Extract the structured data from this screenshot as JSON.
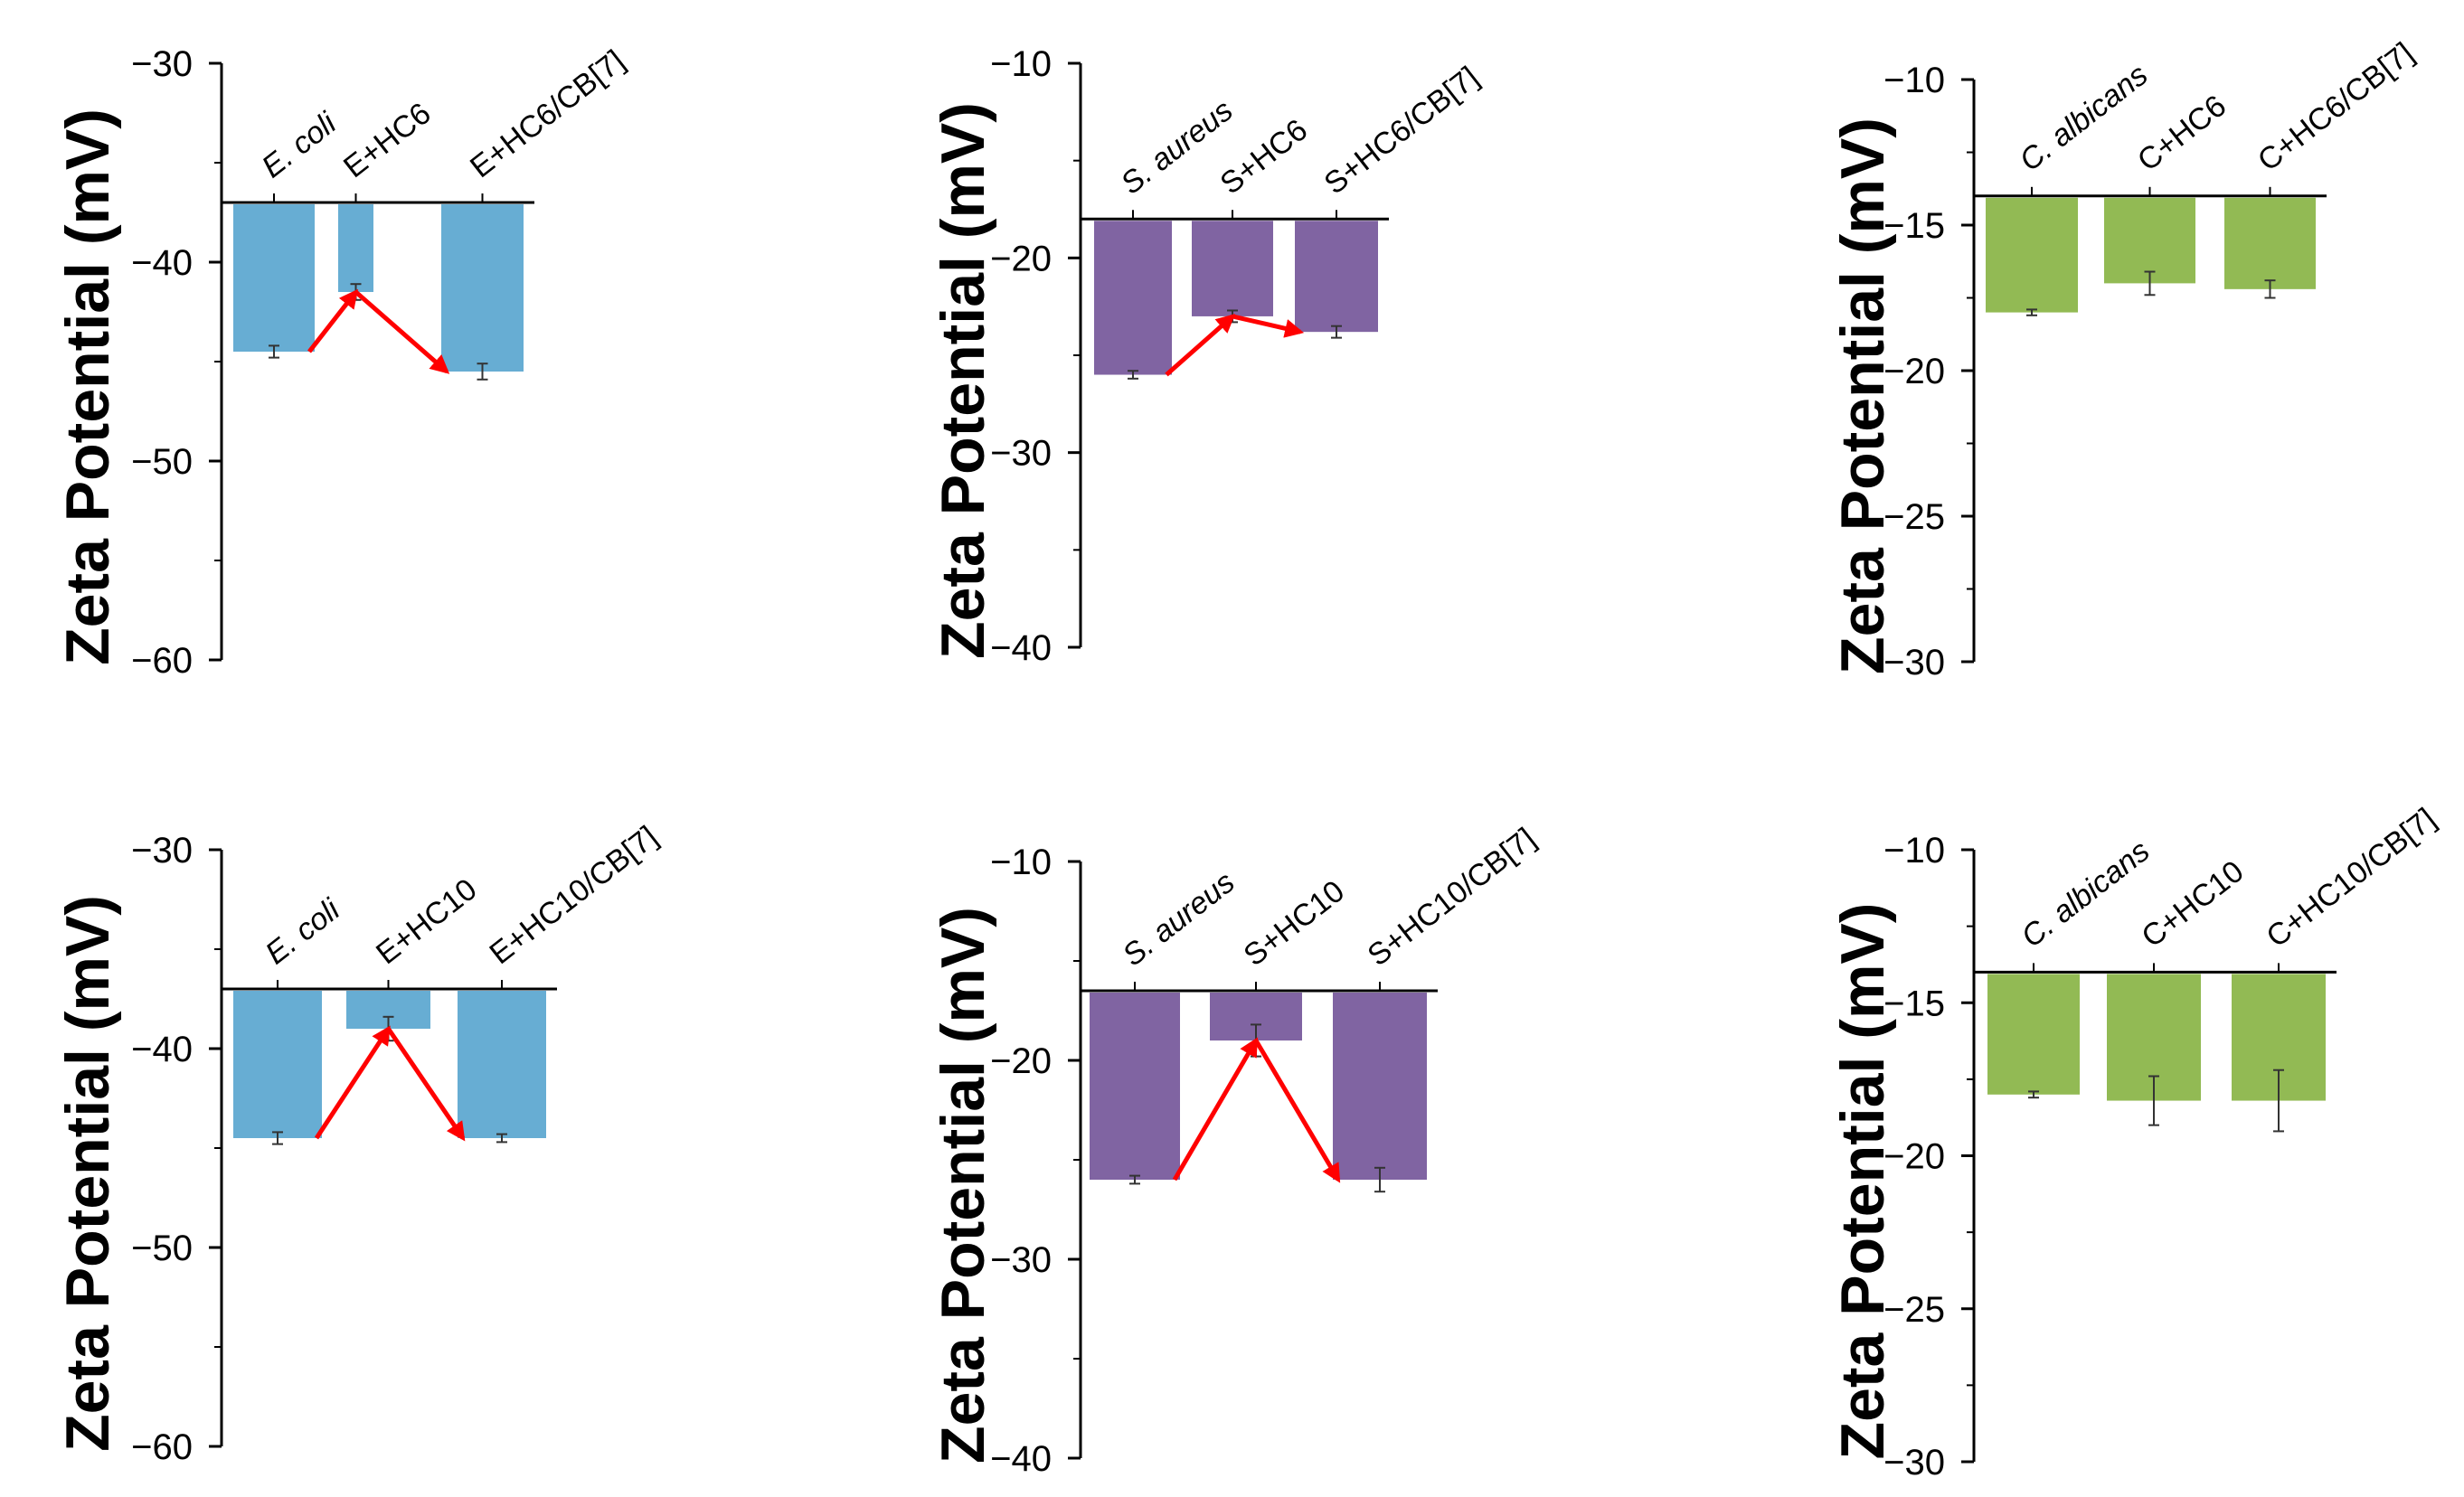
{
  "figure": {
    "ylabel": "Zeta Potential  (mV)"
  },
  "colors": {
    "ecoli": "#67ADD3",
    "saureus": "#8064A2",
    "calbicans": "#92BA54",
    "arrow": "#FF0000",
    "axis": "#000000"
  },
  "chart_data": [
    {
      "id": "ecoli-hc6",
      "type": "bar",
      "ylabel": "Zeta Potential  (mV)",
      "color_key": "ecoli",
      "ylim": [
        -60,
        -30
      ],
      "yticks": [
        -30,
        -40,
        -50,
        -60
      ],
      "ytick_labels": [
        "−30",
        "−40",
        "−50",
        "−60"
      ],
      "baseline": -37,
      "categories": [
        {
          "pre": "E. coli",
          "italic": true
        },
        {
          "pre": "E+HC6",
          "italic": false
        },
        {
          "pre": "E+HC6/CB[7]",
          "italic": false
        }
      ],
      "values": [
        -44.5,
        -41.5,
        -45.5
      ],
      "errors": [
        0.3,
        0.4,
        0.4
      ],
      "arrows": [
        [
          0,
          1
        ],
        [
          1,
          2
        ]
      ]
    },
    {
      "id": "saureus-hc6",
      "type": "bar",
      "ylabel": "Zeta Potential  (mV)",
      "color_key": "saureus",
      "ylim": [
        -40,
        -10
      ],
      "yticks": [
        -10,
        -20,
        -30,
        -40
      ],
      "ytick_labels": [
        "−10",
        "−20",
        "−30",
        "−40"
      ],
      "baseline": -18,
      "categories": [
        {
          "pre": "S. aureus",
          "italic": true
        },
        {
          "pre": "S+HC6",
          "italic": false
        },
        {
          "pre": "S+HC6/CB[7]",
          "italic": false
        }
      ],
      "values": [
        -26.0,
        -23.0,
        -23.8
      ],
      "errors": [
        0.2,
        0.3,
        0.3
      ],
      "arrows": [
        [
          0,
          1
        ],
        [
          1,
          2
        ]
      ]
    },
    {
      "id": "calbicans-hc6",
      "type": "bar",
      "ylabel": "Zeta Potential  (mV)",
      "color_key": "calbicans",
      "ylim": [
        -30,
        -10
      ],
      "yticks": [
        -10,
        -15,
        -20,
        -25,
        -30
      ],
      "ytick_labels": [
        "−10",
        "−15",
        "−20",
        "−25",
        "−30"
      ],
      "baseline": -14,
      "categories": [
        {
          "pre": "C. albicans",
          "italic": true
        },
        {
          "pre": "C+HC6",
          "italic": false
        },
        {
          "pre": "C+HC6/CB[7]",
          "italic": false
        }
      ],
      "values": [
        -18.0,
        -17.0,
        -17.2
      ],
      "errors": [
        0.1,
        0.4,
        0.3
      ],
      "arrows": []
    },
    {
      "id": "ecoli-hc10",
      "type": "bar",
      "ylabel": "Zeta Potential  (mV)",
      "color_key": "ecoli",
      "ylim": [
        -60,
        -30
      ],
      "yticks": [
        -30,
        -40,
        -50,
        -60
      ],
      "ytick_labels": [
        "−30",
        "−40",
        "−50",
        "−60"
      ],
      "baseline": -37,
      "categories": [
        {
          "pre": "E. coli",
          "italic": true
        },
        {
          "pre": "E+HC10",
          "italic": false
        },
        {
          "pre": "E+HC10/CB[7]",
          "italic": false
        }
      ],
      "values": [
        -44.5,
        -39.0,
        -44.5
      ],
      "errors": [
        0.3,
        0.6,
        0.2
      ],
      "arrows": [
        [
          0,
          1
        ],
        [
          1,
          2
        ]
      ]
    },
    {
      "id": "saureus-hc10",
      "type": "bar",
      "ylabel": "Zeta Potential  (mV)",
      "color_key": "saureus",
      "ylim": [
        -40,
        -10
      ],
      "yticks": [
        -10,
        -20,
        -30,
        -40
      ],
      "ytick_labels": [
        "−10",
        "−20",
        "−30",
        "−40"
      ],
      "baseline": -16.5,
      "categories": [
        {
          "pre": "S. aureus",
          "italic": true
        },
        {
          "pre": "S+HC10",
          "italic": false
        },
        {
          "pre": "S+HC10/CB[7]",
          "italic": false
        }
      ],
      "values": [
        -26.0,
        -19.0,
        -26.0
      ],
      "errors": [
        0.2,
        0.8,
        0.6
      ],
      "arrows": [
        [
          0,
          1
        ],
        [
          1,
          2
        ]
      ]
    },
    {
      "id": "calbicans-hc10",
      "type": "bar",
      "ylabel": "Zeta Potential  (mV)",
      "color_key": "calbicans",
      "ylim": [
        -30,
        -10
      ],
      "yticks": [
        -10,
        -15,
        -20,
        -25,
        -30
      ],
      "ytick_labels": [
        "−10",
        "−15",
        "−20",
        "−25",
        "−30"
      ],
      "baseline": -14,
      "categories": [
        {
          "pre": "C. albicans",
          "italic": true
        },
        {
          "pre": "C+HC10",
          "italic": false
        },
        {
          "pre": "C+HC10/CB[7]",
          "italic": false
        }
      ],
      "values": [
        -18.0,
        -18.2,
        -18.2
      ],
      "errors": [
        0.1,
        0.8,
        1.0
      ],
      "arrows": []
    }
  ]
}
